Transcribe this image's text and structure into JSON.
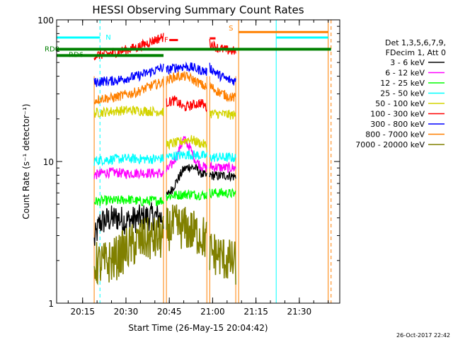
{
  "chart_data": {
    "type": "line",
    "title": "HESSI Observing Summary Count Rates",
    "xlabel": "Start Time (26-May-15 20:04:42)",
    "ylabel": "Count Rate (s⁻¹ detector⁻¹)",
    "ylog": true,
    "xlim": [
      "20:06",
      "21:44"
    ],
    "ylim": [
      1,
      100
    ],
    "x_ticks": [
      "20:15",
      "20:30",
      "20:45",
      "21:00",
      "21:15",
      "21:30"
    ],
    "y_ticks": [
      "1",
      "10",
      "100"
    ],
    "legend": {
      "placement": "right",
      "header": [
        "Det 1,3,5,6,7,9,",
        "FDecim 1, Att 0"
      ],
      "entries": [
        {
          "label": "3 - 6 keV",
          "color": "#000000"
        },
        {
          "label": "6 - 12 keV",
          "color": "#ff00ff"
        },
        {
          "label": "12 - 25 keV",
          "color": "#00ff00"
        },
        {
          "label": "25 - 50 keV",
          "color": "#00ffff"
        },
        {
          "label": "50 - 100 keV",
          "color": "#d4d400"
        },
        {
          "label": "100 - 300 keV",
          "color": "#ff0000"
        },
        {
          "label": "300 - 800 keV",
          "color": "#0000ff"
        },
        {
          "label": "800 - 7000 keV",
          "color": "#ff8000"
        },
        {
          "label": "7000 - 20000 keV",
          "color": "#808000"
        }
      ]
    },
    "segments": [
      {
        "start": "20:19",
        "end": "20:43"
      },
      {
        "start": "20:44",
        "end": "20:58"
      },
      {
        "start": "20:59",
        "end": "21:08"
      }
    ],
    "series": [
      {
        "name": "3 - 6 keV",
        "color": "#000000",
        "levels": [
          3.8,
          null,
          7.8
        ],
        "points": [
          [
            "20:19",
            2.7
          ],
          [
            "20:21",
            3.7
          ],
          [
            "20:24",
            3.9
          ],
          [
            "20:27",
            4.0
          ],
          [
            "20:30",
            3.8
          ],
          [
            "20:33",
            3.9
          ],
          [
            "20:36",
            4.0
          ],
          [
            "20:39",
            4.1
          ],
          [
            "20:43",
            4.0
          ],
          [
            "20:44",
            5.6
          ],
          [
            "20:46",
            6.4
          ],
          [
            "20:48",
            7.5
          ],
          [
            "20:50",
            8.8
          ],
          [
            "20:52",
            9.2
          ],
          [
            "20:54",
            9.0
          ],
          [
            "20:56",
            8.3
          ],
          [
            "20:58",
            7.8
          ],
          [
            "20:59",
            8.0
          ],
          [
            "21:02",
            7.9
          ],
          [
            "21:05",
            8.0
          ],
          [
            "21:08",
            7.8
          ]
        ]
      },
      {
        "name": "6 - 12 keV",
        "color": "#ff00ff",
        "levels": [
          8.2,
          null,
          9.1
        ],
        "points": [
          [
            "20:19",
            8.0
          ],
          [
            "20:22",
            8.3
          ],
          [
            "20:26",
            8.4
          ],
          [
            "20:30",
            8.2
          ],
          [
            "20:34",
            8.3
          ],
          [
            "20:38",
            8.3
          ],
          [
            "20:43",
            8.2
          ],
          [
            "20:44",
            8.6
          ],
          [
            "20:46",
            9.6
          ],
          [
            "20:48",
            11.4
          ],
          [
            "20:50",
            14.5
          ],
          [
            "20:52",
            12.6
          ],
          [
            "20:54",
            10.2
          ],
          [
            "20:56",
            9.3
          ],
          [
            "20:58",
            9.0
          ],
          [
            "20:59",
            9.2
          ],
          [
            "21:02",
            9.1
          ],
          [
            "21:05",
            9.0
          ],
          [
            "21:08",
            9.0
          ]
        ]
      },
      {
        "name": "12 - 25 keV",
        "color": "#00ff00",
        "levels": [
          5.3,
          5.8,
          6.0
        ],
        "points": [
          [
            "20:19",
            5.2
          ],
          [
            "20:23",
            5.3
          ],
          [
            "20:27",
            5.3
          ],
          [
            "20:31",
            5.4
          ],
          [
            "20:35",
            5.2
          ],
          [
            "20:39",
            5.3
          ],
          [
            "20:43",
            5.3
          ],
          [
            "20:44",
            5.7
          ],
          [
            "20:48",
            5.8
          ],
          [
            "20:52",
            5.9
          ],
          [
            "20:56",
            5.8
          ],
          [
            "20:58",
            5.8
          ],
          [
            "20:59",
            6.0
          ],
          [
            "21:03",
            6.0
          ],
          [
            "21:08",
            5.9
          ]
        ]
      },
      {
        "name": "25 - 50 keV",
        "color": "#00ffff",
        "levels": [
          10.3,
          11.0,
          10.7
        ],
        "points": [
          [
            "20:19",
            10.1
          ],
          [
            "20:23",
            10.3
          ],
          [
            "20:27",
            10.4
          ],
          [
            "20:31",
            10.5
          ],
          [
            "20:35",
            10.4
          ],
          [
            "20:39",
            10.4
          ],
          [
            "20:43",
            10.5
          ],
          [
            "20:44",
            10.8
          ],
          [
            "20:48",
            11.0
          ],
          [
            "20:52",
            11.2
          ],
          [
            "20:56",
            11.0
          ],
          [
            "20:58",
            10.9
          ],
          [
            "20:59",
            10.7
          ],
          [
            "21:03",
            10.7
          ],
          [
            "21:08",
            10.6
          ]
        ]
      },
      {
        "name": "50 - 100 keV",
        "color": "#d4d400",
        "levels": [
          22.5,
          13.0,
          21.5
        ],
        "points": [
          [
            "20:19",
            22.0
          ],
          [
            "20:23",
            22.4
          ],
          [
            "20:27",
            22.8
          ],
          [
            "20:31",
            23.0
          ],
          [
            "20:35",
            22.8
          ],
          [
            "20:39",
            22.6
          ],
          [
            "20:43",
            22.5
          ],
          [
            "20:44",
            13.2
          ],
          [
            "20:48",
            13.6
          ],
          [
            "20:52",
            14.4
          ],
          [
            "20:56",
            13.4
          ],
          [
            "20:58",
            13.0
          ],
          [
            "20:59",
            21.8
          ],
          [
            "21:03",
            21.6
          ],
          [
            "21:08",
            21.2
          ]
        ]
      },
      {
        "name": "100 - 300 keV",
        "color": "#ff0000",
        "levels": [
          60,
          25,
          60
        ],
        "points": [
          [
            "20:19",
            56
          ],
          [
            "20:22",
            57
          ],
          [
            "20:25",
            58
          ],
          [
            "20:28",
            60
          ],
          [
            "20:31",
            62
          ],
          [
            "20:34",
            64
          ],
          [
            "20:37",
            68
          ],
          [
            "20:40",
            72
          ],
          [
            "20:43",
            76
          ],
          [
            "20:44",
            26
          ],
          [
            "20:47",
            27
          ],
          [
            "20:50",
            24
          ],
          [
            "20:53",
            25
          ],
          [
            "20:56",
            26
          ],
          [
            "20:58",
            24
          ],
          [
            "20:59",
            68
          ],
          [
            "21:02",
            63
          ],
          [
            "21:05",
            61
          ],
          [
            "21:08",
            60
          ]
        ]
      },
      {
        "name": "300 - 800 keV",
        "color": "#0000ff",
        "levels": [
          37,
          45,
          38
        ],
        "points": [
          [
            "20:19",
            36
          ],
          [
            "20:22",
            37
          ],
          [
            "20:25",
            37
          ],
          [
            "20:28",
            38
          ],
          [
            "20:31",
            39
          ],
          [
            "20:34",
            40
          ],
          [
            "20:37",
            42
          ],
          [
            "20:40",
            44
          ],
          [
            "20:43",
            46
          ],
          [
            "20:44",
            44
          ],
          [
            "20:47",
            46
          ],
          [
            "20:50",
            47
          ],
          [
            "20:53",
            46
          ],
          [
            "20:56",
            44
          ],
          [
            "20:58",
            43
          ],
          [
            "20:59",
            46
          ],
          [
            "21:02",
            41
          ],
          [
            "21:05",
            38
          ],
          [
            "21:08",
            37
          ]
        ]
      },
      {
        "name": "800 - 7000 keV",
        "color": "#ff8000",
        "levels": [
          28,
          40,
          29
        ],
        "points": [
          [
            "20:19",
            27
          ],
          [
            "20:22",
            28
          ],
          [
            "20:25",
            28
          ],
          [
            "20:28",
            29
          ],
          [
            "20:31",
            30
          ],
          [
            "20:34",
            31
          ],
          [
            "20:37",
            33
          ],
          [
            "20:40",
            35
          ],
          [
            "20:43",
            36
          ],
          [
            "20:44",
            37
          ],
          [
            "20:46",
            39
          ],
          [
            "20:48",
            40
          ],
          [
            "20:50",
            40
          ],
          [
            "20:52",
            39
          ],
          [
            "20:54",
            37
          ],
          [
            "20:56",
            35
          ],
          [
            "20:58",
            33
          ],
          [
            "20:59",
            34
          ],
          [
            "21:02",
            31
          ],
          [
            "21:05",
            29
          ],
          [
            "21:08",
            28
          ]
        ]
      },
      {
        "name": "7000 - 20000 keV",
        "color": "#808000",
        "levels": [
          1.9,
          2.7,
          2.0
        ],
        "points": [
          [
            "20:19",
            1.9
          ],
          [
            "20:23",
            1.9
          ],
          [
            "20:27",
            2.1
          ],
          [
            "20:30",
            2.4
          ],
          [
            "20:33",
            2.6
          ],
          [
            "20:36",
            2.8
          ],
          [
            "20:39",
            2.8
          ],
          [
            "20:43",
            2.9
          ],
          [
            "20:44",
            3.3
          ],
          [
            "20:47",
            3.5
          ],
          [
            "20:50",
            3.4
          ],
          [
            "20:53",
            3.2
          ],
          [
            "20:56",
            3.0
          ],
          [
            "20:58",
            2.8
          ],
          [
            "20:59",
            2.3
          ],
          [
            "21:02",
            2.2
          ],
          [
            "21:05",
            2.0
          ],
          [
            "21:08",
            1.9
          ]
        ]
      }
    ],
    "annotations": [
      {
        "label": "N",
        "color": "#00ffff",
        "start": "20:06",
        "end": "20:21",
        "y": 75
      },
      {
        "label": "S",
        "color": "#ff8000",
        "start": "21:09",
        "end": "21:40",
        "y": 82
      },
      {
        "label": "F",
        "color": "#ff0000",
        "start": "20:45",
        "end": "20:48",
        "y": 72
      },
      {
        "label": "RD0",
        "color": "#008000",
        "start": "20:06",
        "end": "21:41",
        "y": 62
      },
      {
        "label": "RD6",
        "color": "#008000",
        "start": "20:06",
        "end": "20:43",
        "y": 56
      }
    ],
    "annotation_bars": [
      {
        "color": "#00ffff",
        "start": "21:22",
        "end": "21:40",
        "y": 75
      },
      {
        "color": "#ff0000",
        "start": "20:59",
        "end": "21:01",
        "y": 74
      }
    ],
    "vertical_markers": [
      {
        "time": "20:21",
        "color": "#00ffff",
        "style": "dashed"
      },
      {
        "time": "21:22",
        "color": "#00ffff",
        "style": "solid"
      },
      {
        "time": "21:09",
        "color": "#ff8000",
        "style": "solid"
      },
      {
        "time": "21:40",
        "color": "#ff8000",
        "style": "solid"
      },
      {
        "time": "21:41",
        "color": "#ff8000",
        "style": "dashed"
      }
    ],
    "segment_edges": {
      "color": "#ff8000",
      "times": [
        "20:19",
        "20:43",
        "20:44",
        "20:58",
        "20:59",
        "21:08"
      ]
    }
  },
  "footer": {
    "stamp": "26-Oct-2017 22:42"
  }
}
